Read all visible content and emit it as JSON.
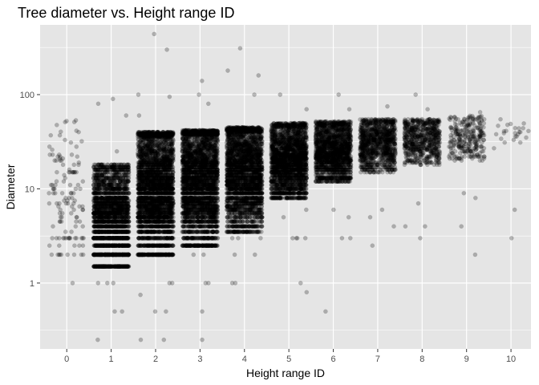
{
  "chart_data": {
    "type": "scatter",
    "title": "Tree diameter vs. Height range ID",
    "xlabel": "Height range ID",
    "ylabel": "Diameter",
    "x_ticks": [
      0,
      1,
      2,
      3,
      4,
      5,
      6,
      7,
      8,
      9,
      10
    ],
    "y_ticks": [
      1,
      10,
      100
    ],
    "y_scale": "log10",
    "xlim": [
      -0.6,
      10.45
    ],
    "ylim": [
      0.2,
      550
    ],
    "point_alpha": 0.25,
    "point_color": "#000000",
    "panel_background": "#e5e5e5",
    "grid_color": "#ffffff",
    "grid": true,
    "legend": "none",
    "jitter_width": 0.4,
    "groups": [
      {
        "x": 0,
        "n": 120,
        "low": 1.8,
        "high": 55,
        "median": 8,
        "extra": [
          3,
          3,
          3,
          3,
          3,
          3,
          3,
          3,
          3,
          3,
          1,
          4
        ]
      },
      {
        "x": 1,
        "n": 2800,
        "low": 1.6,
        "high": 18,
        "median": 5,
        "extra": [
          1,
          1,
          1,
          0.5,
          0.5,
          0.25,
          90,
          80,
          60,
          25
        ]
      },
      {
        "x": 2,
        "n": 3600,
        "low": 2.0,
        "high": 40,
        "median": 10,
        "extra": [
          1,
          1,
          0.5,
          0.5,
          0.25,
          0.25,
          0.75,
          300,
          440,
          100,
          95,
          60
        ]
      },
      {
        "x": 3,
        "n": 3400,
        "low": 2.5,
        "high": 42,
        "median": 12,
        "extra": [
          2,
          2,
          1,
          1,
          0.5,
          0.25,
          140,
          100,
          80
        ]
      },
      {
        "x": 4,
        "n": 3000,
        "low": 3.5,
        "high": 45,
        "median": 15,
        "extra": [
          3,
          3,
          3,
          2,
          2,
          1,
          1,
          180,
          160,
          310,
          100
        ]
      },
      {
        "x": 5,
        "n": 2400,
        "low": 8,
        "high": 50,
        "median": 20,
        "extra": [
          3,
          3,
          3,
          3,
          5,
          6,
          0.8,
          1,
          70,
          100
        ]
      },
      {
        "x": 6,
        "n": 1800,
        "low": 12,
        "high": 52,
        "median": 25,
        "extra": [
          3,
          3,
          5,
          6,
          0.5,
          100,
          70
        ]
      },
      {
        "x": 7,
        "n": 1100,
        "low": 15,
        "high": 55,
        "median": 30,
        "extra": [
          5,
          4,
          2.5,
          6,
          75
        ]
      },
      {
        "x": 8,
        "n": 700,
        "low": 18,
        "high": 55,
        "median": 33,
        "extra": [
          4,
          4,
          3,
          7,
          100,
          70
        ]
      },
      {
        "x": 9,
        "n": 280,
        "low": 20,
        "high": 60,
        "median": 35,
        "extra": [
          2,
          4,
          8,
          9,
          65
        ]
      },
      {
        "x": 10,
        "n": 25,
        "low": 25,
        "high": 55,
        "median": 40,
        "extra": [
          3,
          6
        ]
      }
    ]
  }
}
